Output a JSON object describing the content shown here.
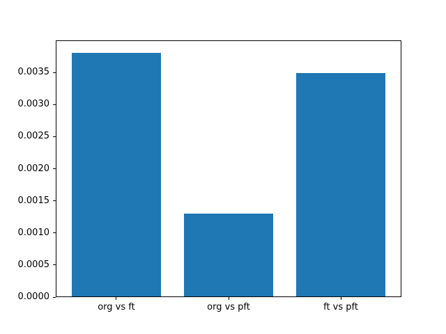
{
  "figure": {
    "background": "#ffffff",
    "text_color": "#000000",
    "spine_color": "#000000"
  },
  "chart_data": {
    "type": "bar",
    "title": "",
    "xlabel": "",
    "ylabel": "",
    "categories": [
      "org vs ft",
      "org vs pft",
      "ft vs pft"
    ],
    "values": [
      0.00381,
      0.0013,
      0.00349
    ],
    "x_positions": [
      0,
      1,
      2
    ],
    "bar_width": 0.8,
    "bar_color": "#1f77b4",
    "xlim": [
      -0.54,
      2.54
    ],
    "ylim": [
      0,
      0.004
    ],
    "yticks": [
      0,
      0.0005,
      0.001,
      0.0015,
      0.002,
      0.0025,
      0.003,
      0.0035
    ],
    "ytick_labels": [
      "0.0000",
      "0.0005",
      "0.0010",
      "0.0015",
      "0.0020",
      "0.0025",
      "0.0030",
      "0.0035"
    ],
    "grid": false,
    "legend": "none"
  }
}
